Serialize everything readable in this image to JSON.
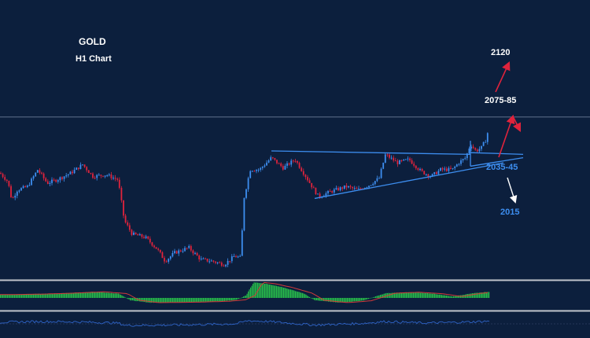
{
  "title": "GOLD",
  "subtitle": "H1 Chart",
  "colors": {
    "background": "#0c1f3d",
    "candle_up": "#3d8ef0",
    "candle_down": "#e0233c",
    "trendline": "#3d8ef0",
    "panel_separator": "#c0c4cc",
    "histogram": "#27b84a",
    "signal_line": "#d23a3a",
    "oscillator": "#2f64c8",
    "arrow_up": "#e0233c",
    "arrow_down": "#ffffff"
  },
  "annotations": {
    "target_2120": "2120",
    "target_2075": "2075-85",
    "support_2035": "2035-45",
    "support_2015": "2015"
  },
  "chart_data": {
    "type": "candlestick",
    "title": "GOLD",
    "subtitle": "H1 Chart",
    "ylim": [
      1965,
      2130
    ],
    "grid": false,
    "legend": "none",
    "horizontal_line": 2061,
    "close_path": [
      [
        0,
        2028
      ],
      [
        10,
        2023
      ],
      [
        15,
        2012
      ],
      [
        22,
        2018
      ],
      [
        35,
        2020
      ],
      [
        48,
        2030
      ],
      [
        60,
        2022
      ],
      [
        72,
        2024
      ],
      [
        90,
        2028
      ],
      [
        105,
        2033
      ],
      [
        118,
        2026
      ],
      [
        135,
        2027
      ],
      [
        150,
        2024
      ],
      [
        158,
        2000
      ],
      [
        168,
        1992
      ],
      [
        185,
        1990
      ],
      [
        200,
        1983
      ],
      [
        210,
        1976
      ],
      [
        222,
        1981
      ],
      [
        240,
        1984
      ],
      [
        255,
        1977
      ],
      [
        270,
        1976
      ],
      [
        285,
        1974
      ],
      [
        298,
        1979
      ],
      [
        306,
        1978
      ],
      [
        310,
        2013
      ],
      [
        318,
        2030
      ],
      [
        330,
        2030
      ],
      [
        345,
        2037
      ],
      [
        360,
        2031
      ],
      [
        375,
        2036
      ],
      [
        390,
        2025
      ],
      [
        398,
        2019
      ],
      [
        405,
        2014
      ],
      [
        420,
        2017
      ],
      [
        440,
        2020
      ],
      [
        455,
        2018
      ],
      [
        470,
        2021
      ],
      [
        482,
        2025
      ],
      [
        490,
        2039
      ],
      [
        505,
        2034
      ],
      [
        520,
        2036
      ],
      [
        535,
        2029
      ],
      [
        548,
        2026
      ],
      [
        560,
        2030
      ],
      [
        575,
        2030
      ],
      [
        583,
        2034
      ],
      [
        592,
        2037
      ],
      [
        598,
        2045
      ],
      [
        605,
        2041
      ],
      [
        612,
        2043
      ],
      [
        618,
        2048
      ],
      [
        622,
        2056
      ]
    ],
    "trendlines": [
      {
        "name": "resistance",
        "from": [
          345,
          2041
        ],
        "to": [
          598,
          2039
        ]
      },
      {
        "name": "support",
        "from": [
          400,
          2013
        ],
        "to": [
          640,
          2034
        ]
      },
      {
        "name": "zone-top",
        "from": [
          598,
          2040
        ],
        "to": [
          665,
          2039
        ]
      },
      {
        "name": "zone-bottom",
        "from": [
          598,
          2032
        ],
        "to": [
          665,
          2037
        ]
      }
    ],
    "indicator_histogram": [
      [
        0,
        0.7
      ],
      [
        40,
        0.8
      ],
      [
        80,
        1.0
      ],
      [
        120,
        1.3
      ],
      [
        150,
        0.9
      ],
      [
        165,
        -0.5
      ],
      [
        190,
        -1.0
      ],
      [
        240,
        -0.9
      ],
      [
        280,
        -0.7
      ],
      [
        300,
        -0.4
      ],
      [
        312,
        0.5
      ],
      [
        322,
        3.3
      ],
      [
        338,
        3.0
      ],
      [
        360,
        2.2
      ],
      [
        385,
        1.0
      ],
      [
        400,
        -0.5
      ],
      [
        430,
        -1.0
      ],
      [
        460,
        -0.6
      ],
      [
        490,
        1.0
      ],
      [
        520,
        1.2
      ],
      [
        550,
        0.9
      ],
      [
        575,
        0.3
      ],
      [
        600,
        1.0
      ],
      [
        622,
        1.3
      ]
    ],
    "oscillator": [
      [
        0,
        0.4
      ],
      [
        50,
        0.6
      ],
      [
        100,
        0.5
      ],
      [
        150,
        0.2
      ],
      [
        160,
        -0.4
      ],
      [
        220,
        -0.3
      ],
      [
        300,
        0.0
      ],
      [
        315,
        0.8
      ],
      [
        340,
        0.6
      ],
      [
        400,
        -0.3
      ],
      [
        460,
        0.1
      ],
      [
        490,
        0.6
      ],
      [
        540,
        0.2
      ],
      [
        600,
        0.5
      ],
      [
        622,
        0.7
      ]
    ]
  }
}
